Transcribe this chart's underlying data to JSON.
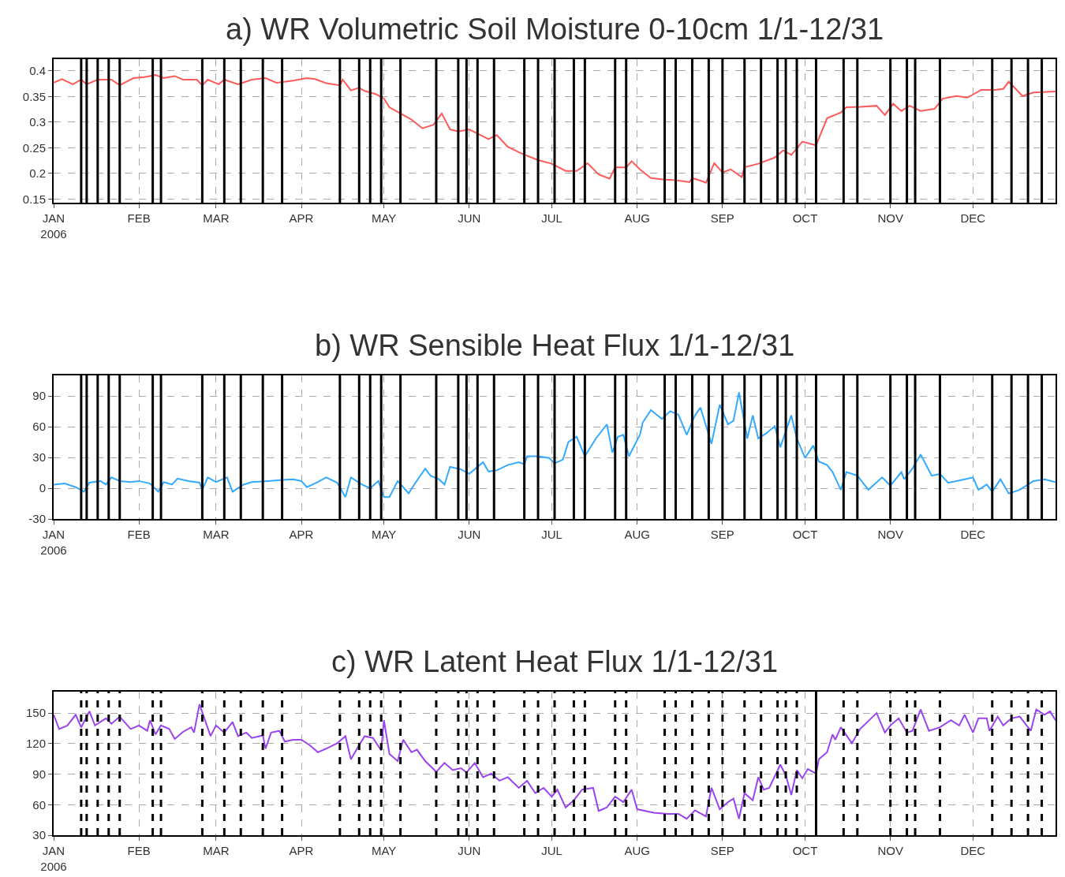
{
  "chart_data": [
    {
      "type": "line",
      "title": "a) WR Volumetric Soil Moisture 0-10cm 1/1-12/31",
      "x": [
        "2006-01-01",
        "2006-01-04",
        "2006-01-08",
        "2006-01-11",
        "2006-01-13",
        "2006-01-17",
        "2006-01-22",
        "2006-01-25",
        "2006-01-30",
        "2006-02-03",
        "2006-02-07",
        "2006-02-10",
        "2006-02-14",
        "2006-02-17",
        "2006-02-22",
        "2006-02-24",
        "2006-02-26",
        "2006-03-02",
        "2006-03-04",
        "2006-03-09",
        "2006-03-14",
        "2006-03-19",
        "2006-03-23",
        "2006-03-29",
        "2006-04-03",
        "2006-04-06",
        "2006-04-10",
        "2006-04-15",
        "2006-04-16",
        "2006-04-19",
        "2006-04-22",
        "2006-04-24",
        "2006-04-28",
        "2006-05-01",
        "2006-05-03",
        "2006-05-07",
        "2006-05-11",
        "2006-05-15",
        "2006-05-19",
        "2006-05-22",
        "2006-05-25",
        "2006-05-28",
        "2006-06-01",
        "2006-06-05",
        "2006-06-08",
        "2006-06-11",
        "2006-06-15",
        "2006-06-20",
        "2006-06-26",
        "2006-07-01",
        "2006-07-06",
        "2006-07-10",
        "2006-07-14",
        "2006-07-18",
        "2006-07-22",
        "2006-07-24",
        "2006-07-28",
        "2006-07-30",
        "2006-08-02",
        "2006-08-06",
        "2006-08-11",
        "2006-08-15",
        "2006-08-20",
        "2006-08-21",
        "2006-08-24",
        "2006-08-26",
        "2006-08-29",
        "2006-09-01",
        "2006-09-04",
        "2006-09-08",
        "2006-09-09",
        "2006-09-14",
        "2006-09-20",
        "2006-09-23",
        "2006-09-26",
        "2006-09-30",
        "2006-10-05",
        "2006-10-09",
        "2006-10-14",
        "2006-10-16",
        "2006-10-21",
        "2006-10-27",
        "2006-10-30",
        "2006-11-02",
        "2006-11-05",
        "2006-11-08",
        "2006-11-12",
        "2006-11-17",
        "2006-11-20",
        "2006-11-25",
        "2006-11-29",
        "2006-12-04",
        "2006-12-09",
        "2006-12-12",
        "2006-12-14",
        "2006-12-19",
        "2006-12-23",
        "2006-12-31"
      ],
      "series": [
        {
          "color": "#ff5a5a",
          "values": [
            0.377,
            0.384,
            0.374,
            0.383,
            0.374,
            0.383,
            0.383,
            0.372,
            0.386,
            0.388,
            0.392,
            0.386,
            0.39,
            0.383,
            0.383,
            0.372,
            0.383,
            0.374,
            0.383,
            0.374,
            0.383,
            0.386,
            0.377,
            0.381,
            0.386,
            0.384,
            0.376,
            0.372,
            0.383,
            0.362,
            0.367,
            0.361,
            0.355,
            0.346,
            0.329,
            0.317,
            0.305,
            0.288,
            0.295,
            0.317,
            0.286,
            0.282,
            0.286,
            0.275,
            0.267,
            0.275,
            0.252,
            0.239,
            0.226,
            0.219,
            0.205,
            0.205,
            0.22,
            0.198,
            0.19,
            0.212,
            0.212,
            0.224,
            0.208,
            0.191,
            0.188,
            0.187,
            0.183,
            0.191,
            0.186,
            0.182,
            0.22,
            0.202,
            0.208,
            0.193,
            0.212,
            0.219,
            0.231,
            0.245,
            0.236,
            0.262,
            0.255,
            0.308,
            0.319,
            0.329,
            0.33,
            0.332,
            0.314,
            0.336,
            0.322,
            0.332,
            0.322,
            0.326,
            0.346,
            0.351,
            0.348,
            0.363,
            0.363,
            0.365,
            0.379,
            0.351,
            0.358,
            0.36
          ]
        }
      ],
      "xlim": [
        "2006-01-01",
        "2006-12-31"
      ],
      "xticks": [
        {
          "value": "2006-01-01",
          "label": "JAN\n2006"
        },
        {
          "value": "2006-02-01",
          "label": "FEB"
        },
        {
          "value": "2006-03-01",
          "label": "MAR"
        },
        {
          "value": "2006-04-01",
          "label": "APR"
        },
        {
          "value": "2006-05-01",
          "label": "MAY"
        },
        {
          "value": "2006-06-01",
          "label": "JUN"
        },
        {
          "value": "2006-07-01",
          "label": "JUL"
        },
        {
          "value": "2006-08-01",
          "label": "AUG"
        },
        {
          "value": "2006-09-01",
          "label": "SEP"
        },
        {
          "value": "2006-10-01",
          "label": "OCT"
        },
        {
          "value": "2006-11-01",
          "label": "NOV"
        },
        {
          "value": "2006-12-01",
          "label": "DEC"
        }
      ],
      "ylim": [
        0.143,
        0.423
      ],
      "yticks": [
        0.15,
        0.2,
        0.25,
        0.3,
        0.35,
        0.4
      ],
      "grid": true,
      "ref_lines": [
        {
          "axis": "x",
          "value": "2006-01-11",
          "color": "#000000",
          "line_style": "solid"
        },
        {
          "axis": "x",
          "value": "2006-01-13",
          "color": "#000000",
          "line_style": "solid"
        },
        {
          "axis": "x",
          "value": "2006-01-17",
          "color": "#000000",
          "line_style": "solid"
        },
        {
          "axis": "x",
          "value": "2006-01-21",
          "color": "#000000",
          "line_style": "solid"
        },
        {
          "axis": "x",
          "value": "2006-01-25",
          "color": "#000000",
          "line_style": "solid"
        },
        {
          "axis": "x",
          "value": "2006-02-06",
          "color": "#000000",
          "line_style": "solid"
        },
        {
          "axis": "x",
          "value": "2006-02-09",
          "color": "#000000",
          "line_style": "solid"
        },
        {
          "axis": "x",
          "value": "2006-02-24",
          "color": "#000000",
          "line_style": "solid"
        },
        {
          "axis": "x",
          "value": "2006-03-04",
          "color": "#000000",
          "line_style": "solid"
        },
        {
          "axis": "x",
          "value": "2006-03-10",
          "color": "#000000",
          "line_style": "solid"
        },
        {
          "axis": "x",
          "value": "2006-03-18",
          "color": "#000000",
          "line_style": "solid"
        },
        {
          "axis": "x",
          "value": "2006-03-25",
          "color": "#000000",
          "line_style": "solid"
        },
        {
          "axis": "x",
          "value": "2006-04-15",
          "color": "#000000",
          "line_style": "solid"
        },
        {
          "axis": "x",
          "value": "2006-04-22",
          "color": "#000000",
          "line_style": "solid"
        },
        {
          "axis": "x",
          "value": "2006-04-26",
          "color": "#000000",
          "line_style": "solid"
        },
        {
          "axis": "x",
          "value": "2006-04-30",
          "color": "#000000",
          "line_style": "solid"
        },
        {
          "axis": "x",
          "value": "2006-05-07",
          "color": "#000000",
          "line_style": "solid"
        },
        {
          "axis": "x",
          "value": "2006-05-20",
          "color": "#000000",
          "line_style": "solid"
        },
        {
          "axis": "x",
          "value": "2006-05-28",
          "color": "#000000",
          "line_style": "solid"
        },
        {
          "axis": "x",
          "value": "2006-05-31",
          "color": "#000000",
          "line_style": "solid"
        },
        {
          "axis": "x",
          "value": "2006-06-04",
          "color": "#000000",
          "line_style": "solid"
        },
        {
          "axis": "x",
          "value": "2006-06-10",
          "color": "#000000",
          "line_style": "solid"
        },
        {
          "axis": "x",
          "value": "2006-06-21",
          "color": "#000000",
          "line_style": "solid"
        },
        {
          "axis": "x",
          "value": "2006-06-26",
          "color": "#000000",
          "line_style": "solid"
        },
        {
          "axis": "x",
          "value": "2006-07-02",
          "color": "#000000",
          "line_style": "solid"
        },
        {
          "axis": "x",
          "value": "2006-07-09",
          "color": "#000000",
          "line_style": "solid"
        },
        {
          "axis": "x",
          "value": "2006-07-13",
          "color": "#000000",
          "line_style": "solid"
        },
        {
          "axis": "x",
          "value": "2006-07-24",
          "color": "#000000",
          "line_style": "solid"
        },
        {
          "axis": "x",
          "value": "2006-07-28",
          "color": "#000000",
          "line_style": "solid"
        },
        {
          "axis": "x",
          "value": "2006-08-11",
          "color": "#000000",
          "line_style": "solid"
        },
        {
          "axis": "x",
          "value": "2006-08-15",
          "color": "#000000",
          "line_style": "solid"
        },
        {
          "axis": "x",
          "value": "2006-08-21",
          "color": "#000000",
          "line_style": "solid"
        },
        {
          "axis": "x",
          "value": "2006-08-27",
          "color": "#000000",
          "line_style": "solid"
        },
        {
          "axis": "x",
          "value": "2006-09-01",
          "color": "#000000",
          "line_style": "solid"
        },
        {
          "axis": "x",
          "value": "2006-09-09",
          "color": "#000000",
          "line_style": "solid"
        },
        {
          "axis": "x",
          "value": "2006-09-15",
          "color": "#000000",
          "line_style": "solid"
        },
        {
          "axis": "x",
          "value": "2006-09-21",
          "color": "#000000",
          "line_style": "solid"
        },
        {
          "axis": "x",
          "value": "2006-09-24",
          "color": "#000000",
          "line_style": "solid"
        },
        {
          "axis": "x",
          "value": "2006-09-28",
          "color": "#000000",
          "line_style": "solid"
        },
        {
          "axis": "x",
          "value": "2006-10-05",
          "color": "#000000",
          "line_style": "solid"
        },
        {
          "axis": "x",
          "value": "2006-10-15",
          "color": "#000000",
          "line_style": "solid"
        },
        {
          "axis": "x",
          "value": "2006-10-20",
          "color": "#000000",
          "line_style": "solid"
        },
        {
          "axis": "x",
          "value": "2006-11-01",
          "color": "#000000",
          "line_style": "solid"
        },
        {
          "axis": "x",
          "value": "2006-11-07",
          "color": "#000000",
          "line_style": "solid"
        },
        {
          "axis": "x",
          "value": "2006-11-10",
          "color": "#000000",
          "line_style": "solid"
        },
        {
          "axis": "x",
          "value": "2006-11-19",
          "color": "#000000",
          "line_style": "solid"
        },
        {
          "axis": "x",
          "value": "2006-12-08",
          "color": "#000000",
          "line_style": "solid"
        },
        {
          "axis": "x",
          "value": "2006-12-15",
          "color": "#000000",
          "line_style": "solid"
        },
        {
          "axis": "x",
          "value": "2006-12-21",
          "color": "#000000",
          "line_style": "solid"
        },
        {
          "axis": "x",
          "value": "2006-12-26",
          "color": "#000000",
          "line_style": "solid"
        }
      ]
    },
    {
      "type": "line",
      "title": "b) WR Sensible Heat Flux 1/1-12/31",
      "x": [
        "2006-01-01",
        "2006-01-05",
        "2006-01-09",
        "2006-01-12",
        "2006-01-14",
        "2006-01-18",
        "2006-01-20",
        "2006-01-22",
        "2006-01-25",
        "2006-01-29",
        "2006-02-01",
        "2006-02-05",
        "2006-02-08",
        "2006-02-10",
        "2006-02-13",
        "2006-02-15",
        "2006-02-19",
        "2006-02-23",
        "2006-02-24",
        "2006-02-26",
        "2006-03-01",
        "2006-03-05",
        "2006-03-07",
        "2006-03-11",
        "2006-03-14",
        "2006-03-20",
        "2006-03-25",
        "2006-03-29",
        "2006-04-01",
        "2006-04-03",
        "2006-04-07",
        "2006-04-10",
        "2006-04-14",
        "2006-04-17",
        "2006-04-19",
        "2006-04-23",
        "2006-04-26",
        "2006-04-29",
        "2006-05-01",
        "2006-05-03",
        "2006-05-06",
        "2006-05-10",
        "2006-05-12",
        "2006-05-16",
        "2006-05-18",
        "2006-05-21",
        "2006-05-23",
        "2006-05-25",
        "2006-05-29",
        "2006-06-01",
        "2006-06-06",
        "2006-06-08",
        "2006-06-11",
        "2006-06-15",
        "2006-06-19",
        "2006-06-21",
        "2006-06-22",
        "2006-06-26",
        "2006-06-30",
        "2006-07-02",
        "2006-07-05",
        "2006-07-07",
        "2006-07-10",
        "2006-07-13",
        "2006-07-17",
        "2006-07-21",
        "2006-07-23",
        "2006-07-25",
        "2006-07-27",
        "2006-07-29",
        "2006-08-02",
        "2006-08-03",
        "2006-08-06",
        "2006-08-10",
        "2006-08-13",
        "2006-08-16",
        "2006-08-19",
        "2006-08-22",
        "2006-08-24",
        "2006-08-28",
        "2006-08-31",
        "2006-09-03",
        "2006-09-05",
        "2006-09-07",
        "2006-09-10",
        "2006-09-12",
        "2006-09-14",
        "2006-09-17",
        "2006-09-20",
        "2006-09-22",
        "2006-09-26",
        "2006-09-28",
        "2006-10-01",
        "2006-10-04",
        "2006-10-06",
        "2006-10-09",
        "2006-10-11",
        "2006-10-14",
        "2006-10-16",
        "2006-10-20",
        "2006-10-24",
        "2006-10-29",
        "2006-11-01",
        "2006-11-05",
        "2006-11-06",
        "2006-11-09",
        "2006-11-12",
        "2006-11-16",
        "2006-11-19",
        "2006-11-22",
        "2006-11-28",
        "2006-12-01",
        "2006-12-03",
        "2006-12-06",
        "2006-12-08",
        "2006-12-11",
        "2006-12-14",
        "2006-12-18",
        "2006-12-23",
        "2006-12-27",
        "2006-12-31"
      ],
      "series": [
        {
          "color": "#33aaff",
          "values": [
            3.5,
            4.6,
            1,
            -3.4,
            5.4,
            7,
            3.5,
            10.5,
            7,
            6,
            7,
            4.5,
            -3.4,
            6,
            3.5,
            9.4,
            7,
            5.4,
            -1.6,
            10.5,
            6,
            10.5,
            -3.4,
            3.5,
            6,
            7,
            8,
            8.7,
            7,
            1,
            6,
            10.5,
            5.4,
            -8.6,
            10.5,
            3.5,
            0,
            7,
            -8.6,
            -8.6,
            7,
            -5,
            3.5,
            19,
            12,
            8.7,
            3.5,
            20.8,
            18.4,
            14,
            25.3,
            16.3,
            17.4,
            22.6,
            25.3,
            23.3,
            31.2,
            31.2,
            29.5,
            24.3,
            27.8,
            45,
            50.2,
            31.2,
            48.5,
            62.3,
            34.7,
            50.2,
            52,
            31.2,
            52,
            64,
            76.2,
            67.5,
            75.1,
            71.7,
            52,
            71,
            78.6,
            43.3,
            81.4,
            62.3,
            65.8,
            93.5,
            48.5,
            71,
            48.5,
            53.7,
            60.6,
            39.9,
            71,
            48.5,
            29.5,
            41.6,
            26,
            22.6,
            15.7,
            -1.6,
            15.7,
            12.2,
            -1.6,
            10.5,
            2.5,
            15.7,
            8.7,
            19.1,
            32.9,
            12.2,
            13.9,
            5.3,
            8.7,
            10.5,
            -1.6,
            3.5,
            -3.4,
            8.7,
            -5.1,
            -1.6,
            7,
            8.7,
            6
          ]
        }
      ],
      "xlim": [
        "2006-01-01",
        "2006-12-31"
      ],
      "xticks": [
        {
          "value": "2006-01-01",
          "label": "JAN\n2006"
        },
        {
          "value": "2006-02-01",
          "label": "FEB"
        },
        {
          "value": "2006-03-01",
          "label": "MAR"
        },
        {
          "value": "2006-04-01",
          "label": "APR"
        },
        {
          "value": "2006-05-01",
          "label": "MAY"
        },
        {
          "value": "2006-06-01",
          "label": "JUN"
        },
        {
          "value": "2006-07-01",
          "label": "JUL"
        },
        {
          "value": "2006-08-01",
          "label": "AUG"
        },
        {
          "value": "2006-09-01",
          "label": "SEP"
        },
        {
          "value": "2006-10-01",
          "label": "OCT"
        },
        {
          "value": "2006-11-01",
          "label": "NOV"
        },
        {
          "value": "2006-12-01",
          "label": "DEC"
        }
      ],
      "ylim": [
        -30,
        110
      ],
      "yticks": [
        -30,
        0,
        30,
        60,
        90
      ],
      "grid": true,
      "ref_lines": [
        {
          "axis": "x",
          "value": "2006-01-11",
          "color": "#000000",
          "line_style": "solid"
        },
        {
          "axis": "x",
          "value": "2006-01-13",
          "color": "#000000",
          "line_style": "solid"
        },
        {
          "axis": "x",
          "value": "2006-01-17",
          "color": "#000000",
          "line_style": "solid"
        },
        {
          "axis": "x",
          "value": "2006-01-21",
          "color": "#000000",
          "line_style": "solid"
        },
        {
          "axis": "x",
          "value": "2006-01-25",
          "color": "#000000",
          "line_style": "solid"
        },
        {
          "axis": "x",
          "value": "2006-02-06",
          "color": "#000000",
          "line_style": "solid"
        },
        {
          "axis": "x",
          "value": "2006-02-09",
          "color": "#000000",
          "line_style": "solid"
        },
        {
          "axis": "x",
          "value": "2006-02-24",
          "color": "#000000",
          "line_style": "solid"
        },
        {
          "axis": "x",
          "value": "2006-03-04",
          "color": "#000000",
          "line_style": "solid"
        },
        {
          "axis": "x",
          "value": "2006-03-10",
          "color": "#000000",
          "line_style": "solid"
        },
        {
          "axis": "x",
          "value": "2006-03-18",
          "color": "#000000",
          "line_style": "solid"
        },
        {
          "axis": "x",
          "value": "2006-03-25",
          "color": "#000000",
          "line_style": "solid"
        },
        {
          "axis": "x",
          "value": "2006-04-15",
          "color": "#000000",
          "line_style": "solid"
        },
        {
          "axis": "x",
          "value": "2006-04-22",
          "color": "#000000",
          "line_style": "solid"
        },
        {
          "axis": "x",
          "value": "2006-04-26",
          "color": "#000000",
          "line_style": "solid"
        },
        {
          "axis": "x",
          "value": "2006-04-30",
          "color": "#000000",
          "line_style": "solid"
        },
        {
          "axis": "x",
          "value": "2006-05-07",
          "color": "#000000",
          "line_style": "solid"
        },
        {
          "axis": "x",
          "value": "2006-05-20",
          "color": "#000000",
          "line_style": "solid"
        },
        {
          "axis": "x",
          "value": "2006-05-28",
          "color": "#000000",
          "line_style": "solid"
        },
        {
          "axis": "x",
          "value": "2006-05-31",
          "color": "#000000",
          "line_style": "solid"
        },
        {
          "axis": "x",
          "value": "2006-06-04",
          "color": "#000000",
          "line_style": "solid"
        },
        {
          "axis": "x",
          "value": "2006-06-10",
          "color": "#000000",
          "line_style": "solid"
        },
        {
          "axis": "x",
          "value": "2006-06-21",
          "color": "#000000",
          "line_style": "solid"
        },
        {
          "axis": "x",
          "value": "2006-06-26",
          "color": "#000000",
          "line_style": "solid"
        },
        {
          "axis": "x",
          "value": "2006-07-02",
          "color": "#000000",
          "line_style": "solid"
        },
        {
          "axis": "x",
          "value": "2006-07-09",
          "color": "#000000",
          "line_style": "solid"
        },
        {
          "axis": "x",
          "value": "2006-07-13",
          "color": "#000000",
          "line_style": "solid"
        },
        {
          "axis": "x",
          "value": "2006-07-24",
          "color": "#000000",
          "line_style": "solid"
        },
        {
          "axis": "x",
          "value": "2006-07-28",
          "color": "#000000",
          "line_style": "solid"
        },
        {
          "axis": "x",
          "value": "2006-08-11",
          "color": "#000000",
          "line_style": "solid"
        },
        {
          "axis": "x",
          "value": "2006-08-15",
          "color": "#000000",
          "line_style": "solid"
        },
        {
          "axis": "x",
          "value": "2006-08-21",
          "color": "#000000",
          "line_style": "solid"
        },
        {
          "axis": "x",
          "value": "2006-08-27",
          "color": "#000000",
          "line_style": "solid"
        },
        {
          "axis": "x",
          "value": "2006-09-01",
          "color": "#000000",
          "line_style": "solid"
        },
        {
          "axis": "x",
          "value": "2006-09-09",
          "color": "#000000",
          "line_style": "solid"
        },
        {
          "axis": "x",
          "value": "2006-09-15",
          "color": "#000000",
          "line_style": "solid"
        },
        {
          "axis": "x",
          "value": "2006-09-21",
          "color": "#000000",
          "line_style": "solid"
        },
        {
          "axis": "x",
          "value": "2006-09-24",
          "color": "#000000",
          "line_style": "solid"
        },
        {
          "axis": "x",
          "value": "2006-09-28",
          "color": "#000000",
          "line_style": "solid"
        },
        {
          "axis": "x",
          "value": "2006-10-05",
          "color": "#000000",
          "line_style": "solid"
        },
        {
          "axis": "x",
          "value": "2006-10-15",
          "color": "#000000",
          "line_style": "solid"
        },
        {
          "axis": "x",
          "value": "2006-10-20",
          "color": "#000000",
          "line_style": "solid"
        },
        {
          "axis": "x",
          "value": "2006-11-01",
          "color": "#000000",
          "line_style": "solid"
        },
        {
          "axis": "x",
          "value": "2006-11-07",
          "color": "#000000",
          "line_style": "solid"
        },
        {
          "axis": "x",
          "value": "2006-11-10",
          "color": "#000000",
          "line_style": "solid"
        },
        {
          "axis": "x",
          "value": "2006-11-19",
          "color": "#000000",
          "line_style": "solid"
        },
        {
          "axis": "x",
          "value": "2006-12-08",
          "color": "#000000",
          "line_style": "solid"
        },
        {
          "axis": "x",
          "value": "2006-12-15",
          "color": "#000000",
          "line_style": "solid"
        },
        {
          "axis": "x",
          "value": "2006-12-21",
          "color": "#000000",
          "line_style": "solid"
        },
        {
          "axis": "x",
          "value": "2006-12-26",
          "color": "#000000",
          "line_style": "solid"
        }
      ]
    },
    {
      "type": "line",
      "title": "c) WR Latent Heat Flux 1/1-12/31",
      "x": [
        "2006-01-01",
        "2006-01-03",
        "2006-01-06",
        "2006-01-09",
        "2006-01-11",
        "2006-01-14",
        "2006-01-16",
        "2006-01-20",
        "2006-01-22",
        "2006-01-25",
        "2006-01-29",
        "2006-02-01",
        "2006-02-04",
        "2006-02-05",
        "2006-02-07",
        "2006-02-09",
        "2006-02-12",
        "2006-02-14",
        "2006-02-17",
        "2006-02-20",
        "2006-02-21",
        "2006-02-23",
        "2006-02-27",
        "2006-03-01",
        "2006-03-04",
        "2006-03-07",
        "2006-03-09",
        "2006-03-12",
        "2006-03-14",
        "2006-03-18",
        "2006-03-19",
        "2006-03-21",
        "2006-03-24",
        "2006-03-26",
        "2006-03-29",
        "2006-04-01",
        "2006-04-04",
        "2006-04-07",
        "2006-04-10",
        "2006-04-14",
        "2006-04-17",
        "2006-04-19",
        "2006-04-22",
        "2006-04-24",
        "2006-04-27",
        "2006-04-30",
        "2006-05-01",
        "2006-05-03",
        "2006-05-06",
        "2006-05-08",
        "2006-05-11",
        "2006-05-13",
        "2006-05-16",
        "2006-05-20",
        "2006-05-23",
        "2006-05-26",
        "2006-05-29",
        "2006-05-31",
        "2006-06-03",
        "2006-06-06",
        "2006-06-09",
        "2006-06-12",
        "2006-06-15",
        "2006-06-19",
        "2006-06-22",
        "2006-06-25",
        "2006-06-28",
        "2006-07-01",
        "2006-07-03",
        "2006-07-06",
        "2006-07-09",
        "2006-07-12",
        "2006-07-16",
        "2006-07-18",
        "2006-07-21",
        "2006-07-24",
        "2006-07-27",
        "2006-07-30",
        "2006-08-01",
        "2006-08-07",
        "2006-08-12",
        "2006-08-16",
        "2006-08-19",
        "2006-08-22",
        "2006-08-26",
        "2006-08-28",
        "2006-08-31",
        "2006-09-03",
        "2006-09-05",
        "2006-09-07",
        "2006-09-09",
        "2006-09-12",
        "2006-09-14",
        "2006-09-16",
        "2006-09-18",
        "2006-09-22",
        "2006-09-24",
        "2006-09-26",
        "2006-09-28",
        "2006-09-30",
        "2006-10-02",
        "2006-10-05",
        "2006-10-06",
        "2006-10-09",
        "2006-10-11",
        "2006-10-12",
        "2006-10-14",
        "2006-10-18",
        "2006-10-21",
        "2006-10-27",
        "2006-10-30",
        "2006-11-01",
        "2006-11-04",
        "2006-11-07",
        "2006-11-09",
        "2006-11-12",
        "2006-11-15",
        "2006-11-19",
        "2006-11-23",
        "2006-11-26",
        "2006-11-28",
        "2006-12-01",
        "2006-12-03",
        "2006-12-06",
        "2006-12-07",
        "2006-12-10",
        "2006-12-12",
        "2006-12-15",
        "2006-12-18",
        "2006-12-22",
        "2006-12-24",
        "2006-12-27",
        "2006-12-29",
        "2006-12-31"
      ],
      "series": [
        {
          "color": "#9944ee",
          "values": [
            148.3,
            134.3,
            137.8,
            148.3,
            136,
            151.7,
            137.8,
            144.8,
            139.5,
            146.5,
            134.3,
            137.8,
            132.5,
            143,
            129,
            137.8,
            134.3,
            124.5,
            131.5,
            136,
            130.8,
            158.7,
            127.3,
            137.8,
            130.8,
            141.3,
            127.3,
            130.8,
            125.5,
            128,
            115,
            130.8,
            132.5,
            122,
            123.8,
            123.8,
            118.5,
            111.5,
            115,
            120.3,
            127.3,
            104.5,
            118.5,
            127.3,
            125.5,
            113.3,
            143,
            109.8,
            102.8,
            123.8,
            111.5,
            114,
            102.8,
            92.3,
            101,
            94,
            95.8,
            91.6,
            101,
            87,
            90.5,
            83.5,
            87,
            76.5,
            83.5,
            71.3,
            76.5,
            67.8,
            74.8,
            57.3,
            64.3,
            74.8,
            76.5,
            53.8,
            57.3,
            67.8,
            62.5,
            74.8,
            55.5,
            52,
            51,
            51,
            46.1,
            54.5,
            48.5,
            76.5,
            55.5,
            62.5,
            66,
            46.1,
            71.3,
            64.3,
            87,
            74.8,
            76.5,
            99.3,
            88.8,
            69.5,
            94,
            86,
            95,
            90.5,
            104.5,
            111.5,
            129,
            123.8,
            136,
            120.3,
            134.3,
            150,
            130.8,
            137.8,
            144.8,
            130.8,
            132.5,
            153.5,
            132.5,
            136,
            143,
            137.8,
            148.3,
            130.8,
            144.8,
            144.8,
            132.5,
            146.5,
            137.8,
            144.8,
            146.5,
            132.5,
            153.5,
            148.3,
            151.7,
            143
          ]
        }
      ],
      "xlim": [
        "2006-01-01",
        "2006-12-31"
      ],
      "xticks": [
        {
          "value": "2006-01-01",
          "label": "JAN\n2006"
        },
        {
          "value": "2006-02-01",
          "label": "FEB"
        },
        {
          "value": "2006-03-01",
          "label": "MAR"
        },
        {
          "value": "2006-04-01",
          "label": "APR"
        },
        {
          "value": "2006-05-01",
          "label": "MAY"
        },
        {
          "value": "2006-06-01",
          "label": "JUN"
        },
        {
          "value": "2006-07-01",
          "label": "JUL"
        },
        {
          "value": "2006-08-01",
          "label": "AUG"
        },
        {
          "value": "2006-09-01",
          "label": "SEP"
        },
        {
          "value": "2006-10-01",
          "label": "OCT"
        },
        {
          "value": "2006-11-01",
          "label": "NOV"
        },
        {
          "value": "2006-12-01",
          "label": "DEC"
        }
      ],
      "ylim": [
        30,
        171
      ],
      "yticks": [
        30,
        60,
        90,
        120,
        150
      ],
      "grid": true,
      "ref_lines": [
        {
          "axis": "x",
          "value": "2006-01-11",
          "color": "#000000",
          "line_style": "dashed"
        },
        {
          "axis": "x",
          "value": "2006-01-13",
          "color": "#000000",
          "line_style": "dashed"
        },
        {
          "axis": "x",
          "value": "2006-01-17",
          "color": "#000000",
          "line_style": "dashed"
        },
        {
          "axis": "x",
          "value": "2006-01-21",
          "color": "#000000",
          "line_style": "dashed"
        },
        {
          "axis": "x",
          "value": "2006-01-25",
          "color": "#000000",
          "line_style": "dashed"
        },
        {
          "axis": "x",
          "value": "2006-02-06",
          "color": "#000000",
          "line_style": "dashed"
        },
        {
          "axis": "x",
          "value": "2006-02-09",
          "color": "#000000",
          "line_style": "dashed"
        },
        {
          "axis": "x",
          "value": "2006-02-24",
          "color": "#000000",
          "line_style": "dashed"
        },
        {
          "axis": "x",
          "value": "2006-03-04",
          "color": "#000000",
          "line_style": "dashed"
        },
        {
          "axis": "x",
          "value": "2006-03-10",
          "color": "#000000",
          "line_style": "dashed"
        },
        {
          "axis": "x",
          "value": "2006-03-18",
          "color": "#000000",
          "line_style": "dashed"
        },
        {
          "axis": "x",
          "value": "2006-03-25",
          "color": "#000000",
          "line_style": "dashed"
        },
        {
          "axis": "x",
          "value": "2006-04-15",
          "color": "#000000",
          "line_style": "dashed"
        },
        {
          "axis": "x",
          "value": "2006-04-22",
          "color": "#000000",
          "line_style": "dashed"
        },
        {
          "axis": "x",
          "value": "2006-04-26",
          "color": "#000000",
          "line_style": "dashed"
        },
        {
          "axis": "x",
          "value": "2006-04-30",
          "color": "#000000",
          "line_style": "dashed"
        },
        {
          "axis": "x",
          "value": "2006-05-07",
          "color": "#000000",
          "line_style": "dashed"
        },
        {
          "axis": "x",
          "value": "2006-05-20",
          "color": "#000000",
          "line_style": "dashed"
        },
        {
          "axis": "x",
          "value": "2006-05-28",
          "color": "#000000",
          "line_style": "dashed"
        },
        {
          "axis": "x",
          "value": "2006-05-31",
          "color": "#000000",
          "line_style": "dashed"
        },
        {
          "axis": "x",
          "value": "2006-06-04",
          "color": "#000000",
          "line_style": "dashed"
        },
        {
          "axis": "x",
          "value": "2006-06-10",
          "color": "#000000",
          "line_style": "dashed"
        },
        {
          "axis": "x",
          "value": "2006-06-21",
          "color": "#000000",
          "line_style": "dashed"
        },
        {
          "axis": "x",
          "value": "2006-06-26",
          "color": "#000000",
          "line_style": "dashed"
        },
        {
          "axis": "x",
          "value": "2006-07-02",
          "color": "#000000",
          "line_style": "dashed"
        },
        {
          "axis": "x",
          "value": "2006-07-09",
          "color": "#000000",
          "line_style": "dashed"
        },
        {
          "axis": "x",
          "value": "2006-07-13",
          "color": "#000000",
          "line_style": "dashed"
        },
        {
          "axis": "x",
          "value": "2006-07-24",
          "color": "#000000",
          "line_style": "dashed"
        },
        {
          "axis": "x",
          "value": "2006-07-28",
          "color": "#000000",
          "line_style": "dashed"
        },
        {
          "axis": "x",
          "value": "2006-08-11",
          "color": "#000000",
          "line_style": "dashed"
        },
        {
          "axis": "x",
          "value": "2006-08-15",
          "color": "#000000",
          "line_style": "dashed"
        },
        {
          "axis": "x",
          "value": "2006-08-21",
          "color": "#000000",
          "line_style": "dashed"
        },
        {
          "axis": "x",
          "value": "2006-08-27",
          "color": "#000000",
          "line_style": "dashed"
        },
        {
          "axis": "x",
          "value": "2006-09-01",
          "color": "#000000",
          "line_style": "dashed"
        },
        {
          "axis": "x",
          "value": "2006-09-09",
          "color": "#000000",
          "line_style": "dashed"
        },
        {
          "axis": "x",
          "value": "2006-09-15",
          "color": "#000000",
          "line_style": "dashed"
        },
        {
          "axis": "x",
          "value": "2006-09-21",
          "color": "#000000",
          "line_style": "dashed"
        },
        {
          "axis": "x",
          "value": "2006-09-24",
          "color": "#000000",
          "line_style": "dashed"
        },
        {
          "axis": "x",
          "value": "2006-09-28",
          "color": "#000000",
          "line_style": "dashed"
        },
        {
          "axis": "x",
          "value": "2006-10-05",
          "color": "#000000",
          "line_style": "solid"
        },
        {
          "axis": "x",
          "value": "2006-10-15",
          "color": "#000000",
          "line_style": "dashed"
        },
        {
          "axis": "x",
          "value": "2006-10-20",
          "color": "#000000",
          "line_style": "dashed"
        },
        {
          "axis": "x",
          "value": "2006-11-01",
          "color": "#000000",
          "line_style": "dashed"
        },
        {
          "axis": "x",
          "value": "2006-11-07",
          "color": "#000000",
          "line_style": "dashed"
        },
        {
          "axis": "x",
          "value": "2006-11-10",
          "color": "#000000",
          "line_style": "dashed"
        },
        {
          "axis": "x",
          "value": "2006-11-19",
          "color": "#000000",
          "line_style": "dashed"
        },
        {
          "axis": "x",
          "value": "2006-12-08",
          "color": "#000000",
          "line_style": "dashed"
        },
        {
          "axis": "x",
          "value": "2006-12-15",
          "color": "#000000",
          "line_style": "dashed"
        },
        {
          "axis": "x",
          "value": "2006-12-21",
          "color": "#000000",
          "line_style": "dashed"
        },
        {
          "axis": "x",
          "value": "2006-12-26",
          "color": "#000000",
          "line_style": "dashed"
        }
      ]
    }
  ]
}
